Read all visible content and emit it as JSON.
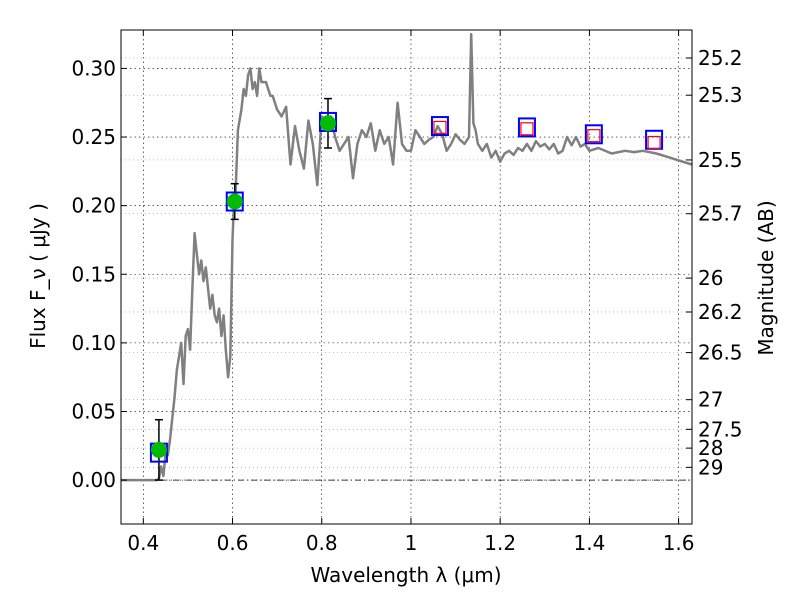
{
  "chart_data": {
    "type": "scatter",
    "xlabel": "Wavelength  λ (μm)",
    "ylabel": "Flux  F_ν  ( μJy )",
    "ylabel_right": "Magnitude (AB)",
    "xlim": [
      0.35,
      1.63
    ],
    "ylim": [
      -0.032,
      0.328
    ],
    "grid": true,
    "x_ticks": [
      0.4,
      0.6,
      0.8,
      1.0,
      1.2,
      1.4,
      1.6
    ],
    "x_tick_labels": [
      "0.4",
      "0.6",
      "0.8",
      "1",
      "1.2",
      "1.4",
      "1.6"
    ],
    "y_ticks": [
      0.0,
      0.05,
      0.1,
      0.15,
      0.2,
      0.25,
      0.3
    ],
    "y_tick_labels": [
      "0.00",
      "0.05",
      "0.10",
      "0.15",
      "0.20",
      "0.25",
      "0.30"
    ],
    "magnitude_ticks": [
      {
        "label": "25.2",
        "flux": 0.3076
      },
      {
        "label": "25.3",
        "flux": 0.2805
      },
      {
        "label": "25.5",
        "flux": 0.2333
      },
      {
        "label": "25.7",
        "flux": 0.1941
      },
      {
        "label": "26",
        "flux": 0.1472
      },
      {
        "label": "26.2",
        "flux": 0.1225
      },
      {
        "label": "26.5",
        "flux": 0.0929
      },
      {
        "label": "27",
        "flux": 0.0586
      },
      {
        "label": "27.5",
        "flux": 0.037
      },
      {
        "label": "28",
        "flux": 0.0233
      },
      {
        "label": "29",
        "flux": 0.0093
      }
    ],
    "series": [
      {
        "role": "model_spectrum",
        "color": "#808080",
        "x": [
          0.35,
          0.43,
          0.435,
          0.44,
          0.445,
          0.45,
          0.455,
          0.46,
          0.465,
          0.47,
          0.475,
          0.48,
          0.485,
          0.49,
          0.495,
          0.5,
          0.505,
          0.51,
          0.515,
          0.52,
          0.525,
          0.53,
          0.535,
          0.54,
          0.545,
          0.55,
          0.555,
          0.56,
          0.565,
          0.57,
          0.575,
          0.58,
          0.585,
          0.59,
          0.595,
          0.6,
          0.603,
          0.607,
          0.612,
          0.62,
          0.625,
          0.63,
          0.635,
          0.64,
          0.645,
          0.65,
          0.655,
          0.66,
          0.665,
          0.67,
          0.675,
          0.68,
          0.685,
          0.69,
          0.7,
          0.71,
          0.72,
          0.73,
          0.74,
          0.75,
          0.76,
          0.77,
          0.78,
          0.79,
          0.8,
          0.81,
          0.82,
          0.83,
          0.84,
          0.85,
          0.86,
          0.87,
          0.88,
          0.89,
          0.9,
          0.91,
          0.92,
          0.93,
          0.94,
          0.95,
          0.96,
          0.97,
          0.98,
          0.99,
          1.0,
          1.01,
          1.02,
          1.03,
          1.04,
          1.05,
          1.06,
          1.07,
          1.08,
          1.09,
          1.1,
          1.11,
          1.12,
          1.13,
          1.135,
          1.14,
          1.145,
          1.15,
          1.16,
          1.17,
          1.18,
          1.19,
          1.2,
          1.21,
          1.22,
          1.23,
          1.24,
          1.25,
          1.26,
          1.27,
          1.28,
          1.29,
          1.3,
          1.31,
          1.32,
          1.33,
          1.34,
          1.35,
          1.36,
          1.37,
          1.38,
          1.39,
          1.4,
          1.42,
          1.45,
          1.48,
          1.5,
          1.52,
          1.55,
          1.58,
          1.6,
          1.63
        ],
        "y": [
          0.0,
          0.0,
          0.001,
          0.01,
          0.003,
          0.02,
          0.018,
          0.03,
          0.045,
          0.06,
          0.08,
          0.09,
          0.1,
          0.07,
          0.105,
          0.11,
          0.095,
          0.14,
          0.18,
          0.165,
          0.15,
          0.16,
          0.145,
          0.155,
          0.14,
          0.125,
          0.135,
          0.12,
          0.115,
          0.125,
          0.105,
          0.12,
          0.095,
          0.075,
          0.09,
          0.175,
          0.2,
          0.21,
          0.255,
          0.27,
          0.285,
          0.28,
          0.295,
          0.3,
          0.285,
          0.29,
          0.28,
          0.3,
          0.29,
          0.29,
          0.29,
          0.285,
          0.28,
          0.28,
          0.27,
          0.265,
          0.272,
          0.23,
          0.258,
          0.24,
          0.227,
          0.262,
          0.245,
          0.215,
          0.265,
          0.26,
          0.265,
          0.25,
          0.24,
          0.245,
          0.25,
          0.22,
          0.245,
          0.255,
          0.25,
          0.26,
          0.24,
          0.255,
          0.245,
          0.25,
          0.23,
          0.275,
          0.245,
          0.24,
          0.24,
          0.255,
          0.25,
          0.245,
          0.248,
          0.25,
          0.258,
          0.252,
          0.24,
          0.245,
          0.252,
          0.248,
          0.245,
          0.25,
          0.325,
          0.26,
          0.255,
          0.245,
          0.24,
          0.245,
          0.235,
          0.24,
          0.232,
          0.238,
          0.24,
          0.237,
          0.242,
          0.24,
          0.245,
          0.24,
          0.247,
          0.243,
          0.245,
          0.241,
          0.245,
          0.238,
          0.24,
          0.25,
          0.244,
          0.25,
          0.243,
          0.245,
          0.24,
          0.242,
          0.238,
          0.24,
          0.239,
          0.24,
          0.238,
          0.235,
          0.233,
          0.23
        ]
      },
      {
        "role": "detections",
        "color": "#00bb00",
        "x": [
          0.435,
          0.605,
          0.814
        ],
        "y": [
          0.022,
          0.203,
          0.26
        ],
        "err": [
          0.022,
          0.013,
          0.018
        ]
      },
      {
        "role": "model_band_fluxes",
        "color": "#0000ff",
        "x": [
          0.435,
          0.605,
          0.814,
          1.065,
          1.26,
          1.41,
          1.545
        ],
        "y": [
          0.02,
          0.203,
          0.261,
          0.258,
          0.257,
          0.252,
          0.248
        ]
      },
      {
        "role": "upper_limits",
        "color": "#ff0000",
        "x": [
          1.065,
          1.26,
          1.41,
          1.545
        ],
        "y": [
          0.257,
          0.256,
          0.251,
          0.246
        ]
      }
    ]
  }
}
